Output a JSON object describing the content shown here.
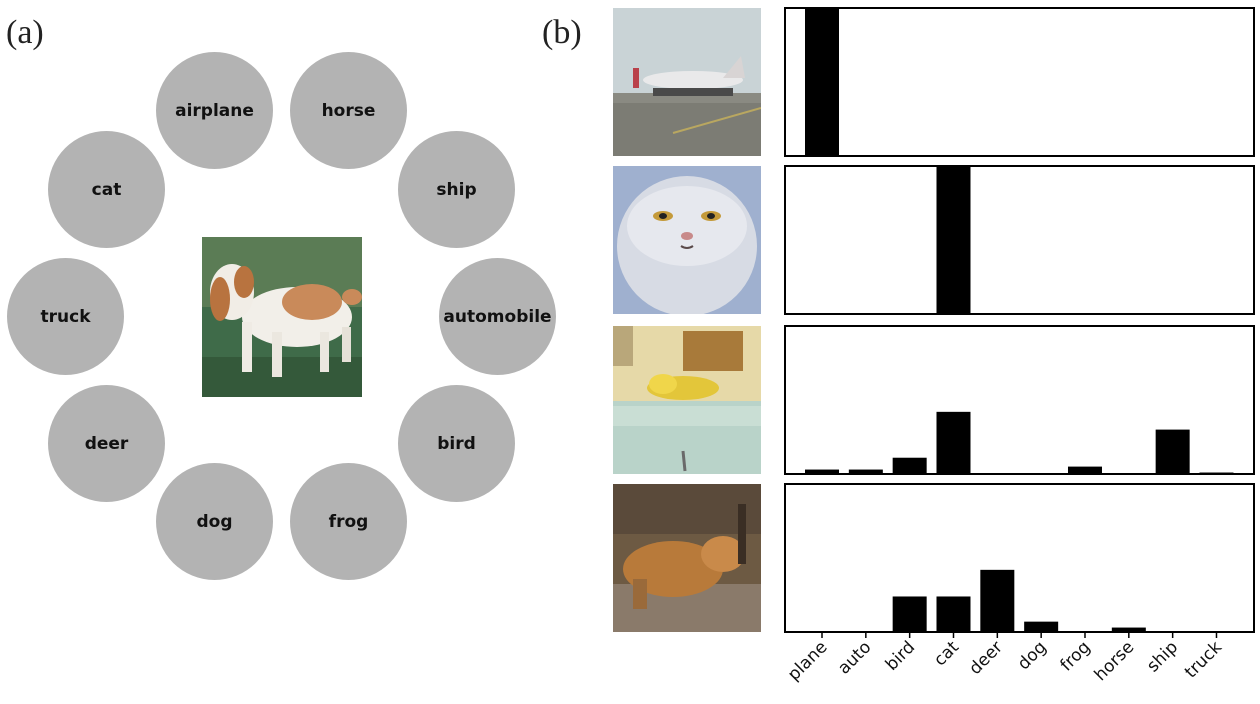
{
  "panel_a": {
    "label": "(a)",
    "classes": [
      "airplane",
      "horse",
      "ship",
      "automobile",
      "bird",
      "frog",
      "dog",
      "deer",
      "truck",
      "cat"
    ]
  },
  "panel_b": {
    "label": "(b)",
    "thumbnails": [
      {
        "icon": "airplane-on-runway-photo"
      },
      {
        "icon": "white-cat-face-photo"
      },
      {
        "icon": "yellow-objects-on-table-photo"
      },
      {
        "icon": "brown-animal-in-grass-photo"
      }
    ]
  },
  "chart_data": {
    "type": "bar",
    "categories": [
      "plane",
      "auto",
      "bird",
      "cat",
      "deer",
      "dog",
      "frog",
      "horse",
      "ship",
      "truck"
    ],
    "ylim": [
      0,
      1
    ],
    "bar_color": "#000000",
    "grid": false,
    "series": [
      {
        "values": [
          1.0,
          0,
          0,
          0,
          0,
          0,
          0,
          0,
          0,
          0
        ]
      },
      {
        "values": [
          0,
          0,
          0,
          1.0,
          0,
          0,
          0,
          0,
          0,
          0
        ]
      },
      {
        "values": [
          0.03,
          0.03,
          0.11,
          0.42,
          0,
          0,
          0.05,
          0,
          0.3,
          0.01
        ]
      },
      {
        "values": [
          0,
          0,
          0.24,
          0.24,
          0.42,
          0.07,
          0,
          0.03,
          0,
          0
        ]
      }
    ]
  }
}
